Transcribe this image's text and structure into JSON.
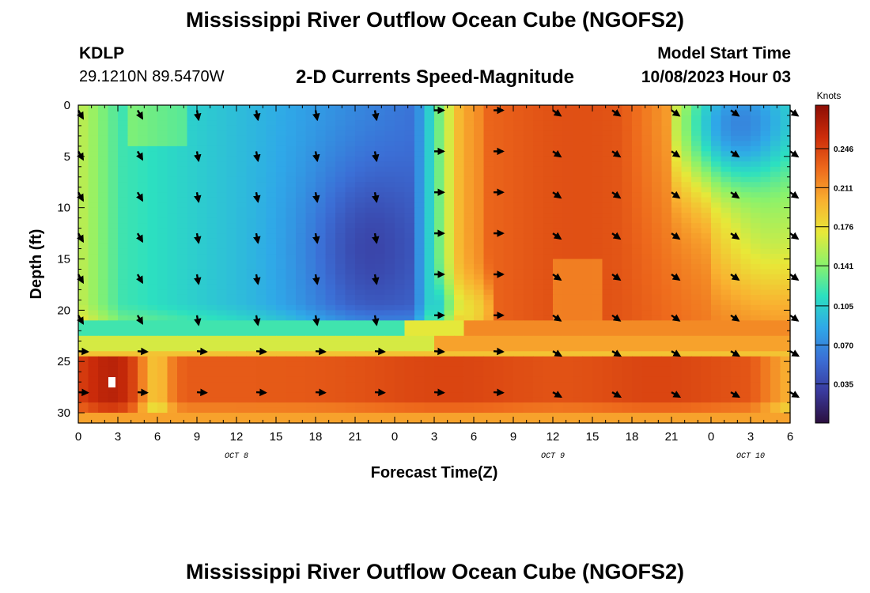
{
  "header": {
    "title": "Mississippi River Outflow Ocean Cube (NGOFS2)",
    "station": "KDLP",
    "coordinates": "29.1210N  89.5470W",
    "subtitle": "2-D Currents Speed-Magnitude",
    "model_start_label": "Model Start Time",
    "model_start_value": "10/08/2023 Hour 03"
  },
  "footer": {
    "title": "Mississippi River Outflow Ocean Cube (NGOFS2)"
  },
  "chart_data": {
    "type": "heatmap",
    "xlabel": "Forecast Time(Z)",
    "ylabel": "Depth (ft)",
    "x_tick_labels": [
      "0",
      "3",
      "6",
      "9",
      "12",
      "15",
      "18",
      "21",
      "0",
      "3",
      "6",
      "9",
      "12",
      "15",
      "18",
      "21",
      "0",
      "3",
      "6"
    ],
    "x_range_hours": [
      0,
      54
    ],
    "date_labels": [
      {
        "text": "OCT 8",
        "hour": 12
      },
      {
        "text": "OCT 9",
        "hour": 36
      },
      {
        "text": "OCT 10",
        "hour": 51
      }
    ],
    "y_ticks": [
      0,
      5,
      10,
      15,
      20,
      25,
      30
    ],
    "y_range": [
      0,
      31
    ],
    "y_inverted": true,
    "colorbar": {
      "unit": "Knots",
      "ticks": [
        "0.035",
        "0.070",
        "0.105",
        "0.141",
        "0.176",
        "0.211",
        "0.246"
      ],
      "range": [
        0.0,
        0.285
      ],
      "colors": [
        "#2b0f3e",
        "#3a3a9e",
        "#3b6fd6",
        "#2fa8e8",
        "#2ce0c0",
        "#8cf26a",
        "#e8e838",
        "#f9b030",
        "#ee6a1c",
        "#cc2c0a",
        "#8c0d05"
      ]
    },
    "arrow_hours": [
      0,
      4.5,
      9,
      13.5,
      18,
      22.5,
      27,
      31.5,
      36,
      40.5,
      45,
      49.5,
      54
    ],
    "arrow_depths": [
      0.5,
      4.5,
      8.5,
      12.5,
      16.5,
      20.5,
      24,
      28
    ]
  }
}
